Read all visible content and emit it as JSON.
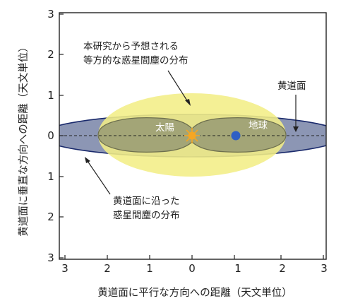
{
  "axes": {
    "x_title": "黄道面に平行な方向への距離（天文単位）",
    "y_title": "黄道面に垂直な方向への距離（天文単位）",
    "x_ticks": [
      "3",
      "2",
      "1",
      "0",
      "1",
      "2",
      "3"
    ],
    "y_ticks": [
      "3",
      "2",
      "1",
      "0",
      "1",
      "2",
      "3"
    ]
  },
  "annotations": {
    "isotropic_line1": "本研究から予想される",
    "isotropic_line2": "等方的な惑星間塵の分布",
    "ecliptic_plane": "黄道面",
    "along_plane_line1": "黄道面に沿った",
    "along_plane_line2": "惑星間塵の分布",
    "sun": "太陽",
    "earth": "地球"
  },
  "colors": {
    "isotropic_cloud": "#f2ee86",
    "ecliptic_disk": "#8c96b4",
    "disk_outline": "#1a2a6c",
    "sun": "#f5a623",
    "earth": "#2f5fc4"
  }
}
